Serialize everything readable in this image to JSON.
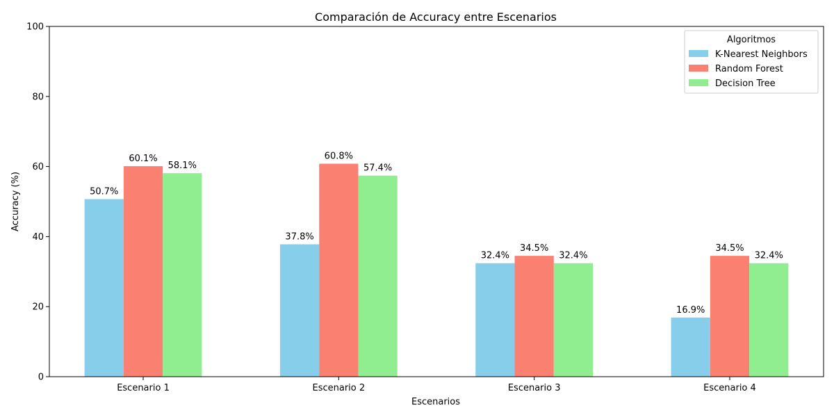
{
  "chart_data": {
    "type": "bar",
    "title": "Comparación de Accuracy entre Escenarios",
    "xlabel": "Escenarios",
    "ylabel": "Accuracy (%)",
    "ylim": [
      0,
      100
    ],
    "yticks": [
      0,
      20,
      40,
      60,
      80,
      100
    ],
    "grid": false,
    "legend_title": "Algoritmos",
    "legend_position": "top-right",
    "categories": [
      "Escenario 1",
      "Escenario 2",
      "Escenario 3",
      "Escenario 4"
    ],
    "series": [
      {
        "name": "K-Nearest Neighbors",
        "color": "#87ceeb",
        "values": [
          50.7,
          37.8,
          32.4,
          16.9
        ],
        "labels": [
          "50.7%",
          "37.8%",
          "32.4%",
          "16.9%"
        ]
      },
      {
        "name": "Random Forest",
        "color": "#fa8072",
        "values": [
          60.1,
          60.8,
          34.5,
          34.5
        ],
        "labels": [
          "60.1%",
          "60.8%",
          "34.5%",
          "34.5%"
        ]
      },
      {
        "name": "Decision Tree",
        "color": "#90ee90",
        "values": [
          58.1,
          57.4,
          32.4,
          32.4
        ],
        "labels": [
          "58.1%",
          "57.4%",
          "32.4%",
          "32.4%"
        ]
      }
    ]
  }
}
